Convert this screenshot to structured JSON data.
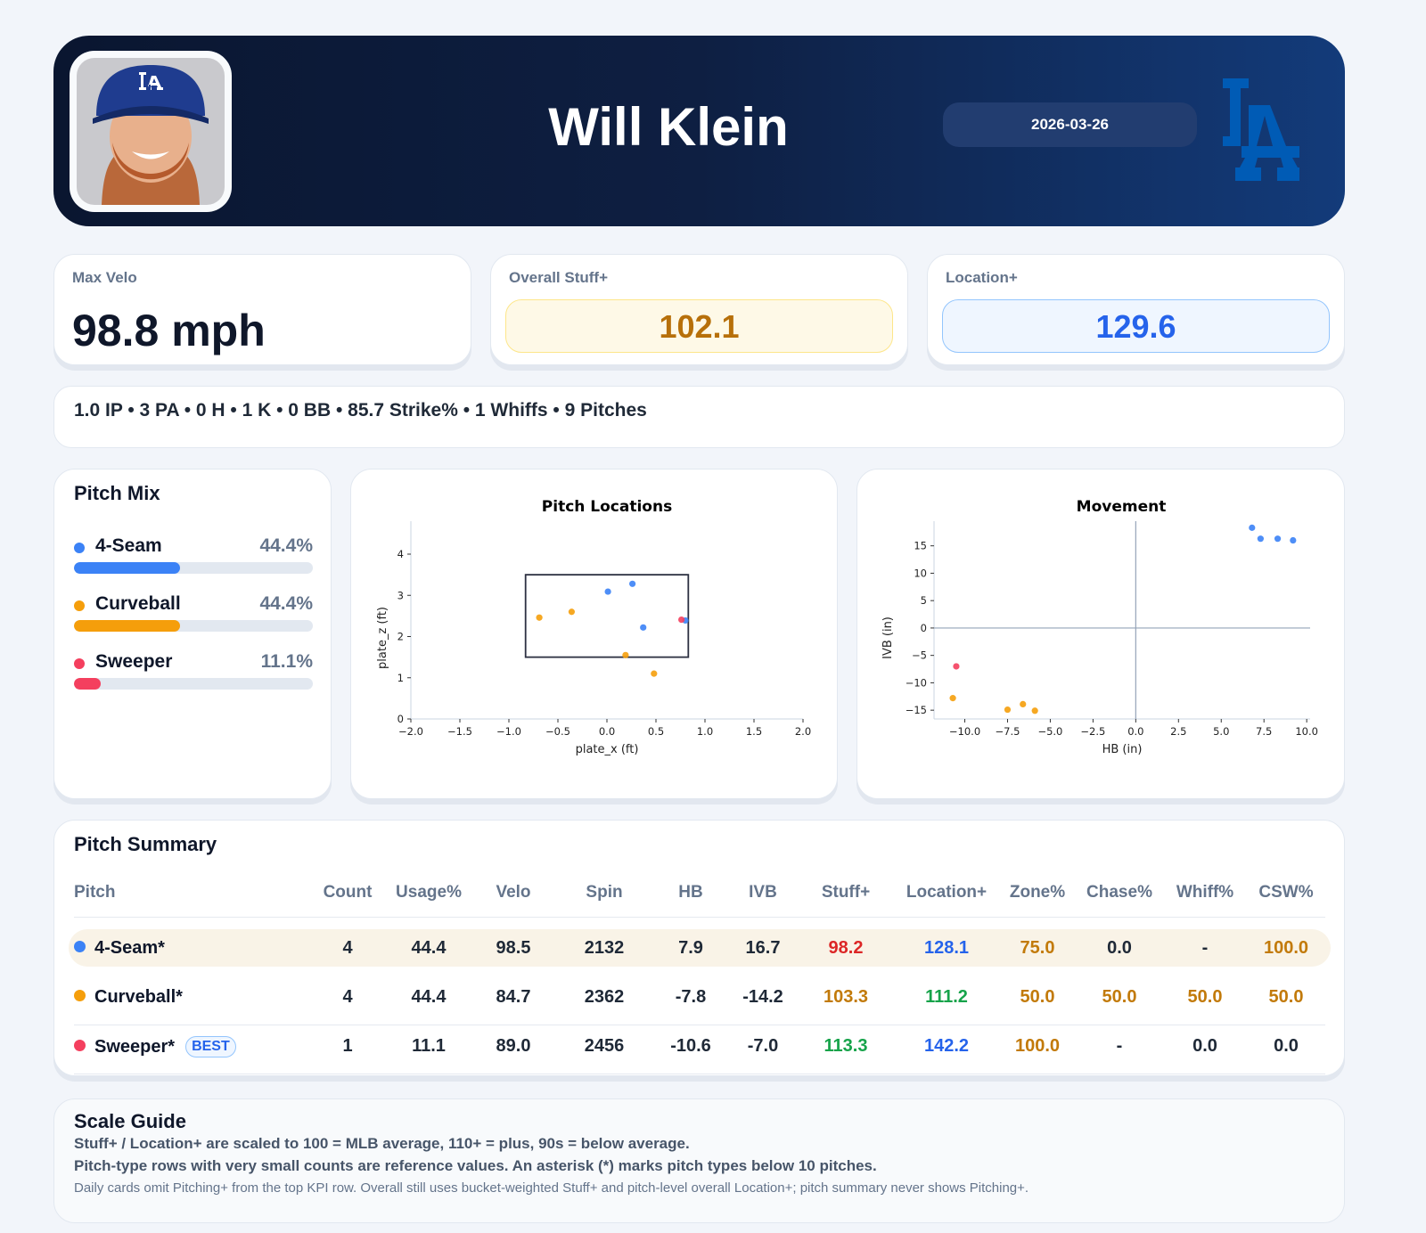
{
  "header": {
    "player_name": "Will Klein",
    "date": "2026-03-26",
    "team_logo": "LA"
  },
  "kpis": {
    "max_velo": {
      "label": "Max Velo",
      "value": "98.8 mph"
    },
    "stuff_plus": {
      "label": "Overall Stuff+",
      "value": "102.1"
    },
    "location_plus": {
      "label": "Location+",
      "value": "129.6"
    }
  },
  "stat_line": "1.0 IP • 3 PA • 0 H • 1 K • 0 BB • 85.7 Strike% • 1 Whiffs • 9 Pitches",
  "pitch_mix": {
    "title": "Pitch Mix",
    "items": [
      {
        "name": "4-Seam",
        "pct_label": "44.4%",
        "pct": 44.4,
        "color": "#3b82f6"
      },
      {
        "name": "Curveball",
        "pct_label": "44.4%",
        "pct": 44.4,
        "color": "#f59e0b"
      },
      {
        "name": "Sweeper",
        "pct_label": "11.1%",
        "pct": 11.1,
        "color": "#f43f5e"
      }
    ]
  },
  "chart_data": [
    {
      "type": "scatter",
      "title": "Pitch Locations",
      "xlabel": "plate_x (ft)",
      "ylabel": "plate_z (ft)",
      "xlim": [
        -2.0,
        2.0
      ],
      "ylim": [
        0,
        4.8
      ],
      "xticks": [
        "−2.0",
        "−1.5",
        "−1.0",
        "−0.5",
        "0.0",
        "0.5",
        "1.0",
        "1.5",
        "2.0"
      ],
      "xtick_values": [
        -2,
        -1.5,
        -1,
        -0.5,
        0,
        0.5,
        1,
        1.5,
        2
      ],
      "yticks": [
        "0",
        "1",
        "2",
        "3",
        "4"
      ],
      "ytick_values": [
        0,
        1,
        2,
        3,
        4
      ],
      "strike_zone": {
        "x": [
          -0.83,
          0.83
        ],
        "z": [
          1.5,
          3.5
        ]
      },
      "series": [
        {
          "color": "#3b82f6",
          "points": [
            [
              0.01,
              3.09
            ],
            [
              0.26,
              3.28
            ],
            [
              0.37,
              2.22
            ],
            [
              0.8,
              2.39
            ]
          ]
        },
        {
          "color": "#f59e0b",
          "points": [
            [
              -0.69,
              2.46
            ],
            [
              -0.36,
              2.6
            ],
            [
              0.19,
              1.55
            ],
            [
              0.48,
              1.1
            ]
          ]
        },
        {
          "color": "#f43f5e",
          "points": [
            [
              0.76,
              2.41
            ]
          ]
        }
      ]
    },
    {
      "type": "scatter",
      "title": "Movement",
      "xlabel": "HB (in)",
      "ylabel": "IVB (in)",
      "xlim": [
        -11.8,
        10.2
      ],
      "ylim": [
        -16.6,
        19.5
      ],
      "xticks": [
        "−10.0",
        "−7.5",
        "−5.0",
        "−2.5",
        "0.0",
        "2.5",
        "5.0",
        "7.5",
        "10.0"
      ],
      "xtick_values": [
        -10,
        -7.5,
        -5,
        -2.5,
        0,
        2.5,
        5,
        7.5,
        10
      ],
      "yticks": [
        "−15",
        "−10",
        "−5",
        "0",
        "5",
        "10",
        "15"
      ],
      "ytick_values": [
        -15,
        -10,
        -5,
        0,
        5,
        10,
        15
      ],
      "zero_lines": true,
      "series": [
        {
          "color": "#3b82f6",
          "points": [
            [
              6.8,
              18.3
            ],
            [
              7.3,
              16.3
            ],
            [
              8.3,
              16.3
            ],
            [
              9.2,
              16.0
            ]
          ]
        },
        {
          "color": "#f59e0b",
          "points": [
            [
              -10.7,
              -12.8
            ],
            [
              -7.5,
              -14.9
            ],
            [
              -6.6,
              -13.9
            ],
            [
              -5.9,
              -15.1
            ]
          ]
        },
        {
          "color": "#f43f5e",
          "points": [
            [
              -10.5,
              -7.0
            ]
          ]
        }
      ]
    }
  ],
  "summary": {
    "title": "Pitch Summary",
    "columns": [
      "Pitch",
      "Count",
      "Usage%",
      "Velo",
      "Spin",
      "HB",
      "IVB",
      "Stuff+",
      "Location+",
      "Zone%",
      "Chase%",
      "Whiff%",
      "CSW%"
    ],
    "best_badge": "BEST",
    "rows": [
      {
        "pitch": "4-Seam*",
        "color": "#3b82f6",
        "highlight": true,
        "best": false,
        "cells": [
          "4",
          "44.4",
          "98.5",
          "2132",
          "7.9",
          "16.7",
          "98.2",
          "128.1",
          "75.0",
          "0.0",
          "-",
          "100.0"
        ],
        "cell_colors": [
          "",
          "",
          "",
          "",
          "",
          "",
          "#dc2626",
          "#2563eb",
          "#c27a0a",
          "",
          "",
          "#c27a0a"
        ]
      },
      {
        "pitch": "Curveball*",
        "color": "#f59e0b",
        "highlight": false,
        "best": false,
        "cells": [
          "4",
          "44.4",
          "84.7",
          "2362",
          "-7.8",
          "-14.2",
          "103.3",
          "111.2",
          "50.0",
          "50.0",
          "50.0",
          "50.0"
        ],
        "cell_colors": [
          "",
          "",
          "",
          "",
          "",
          "",
          "#c27a0a",
          "#16a34a",
          "#c27a0a",
          "#c27a0a",
          "#c27a0a",
          "#c27a0a"
        ]
      },
      {
        "pitch": "Sweeper*",
        "color": "#f43f5e",
        "highlight": false,
        "best": true,
        "cells": [
          "1",
          "11.1",
          "89.0",
          "2456",
          "-10.6",
          "-7.0",
          "113.3",
          "142.2",
          "100.0",
          "-",
          "0.0",
          "0.0"
        ],
        "cell_colors": [
          "",
          "",
          "",
          "",
          "",
          "",
          "#16a34a",
          "#2563eb",
          "#c27a0a",
          "",
          "",
          ""
        ]
      }
    ]
  },
  "scale_guide": {
    "title": "Scale Guide",
    "lines": [
      "Stuff+ / Location+ are scaled to 100 = MLB average, 110+ = plus, 90s = below average.",
      "Pitch-type rows with very small counts are reference values. An asterisk (*) marks pitch types below 10 pitches.",
      "Daily cards omit Pitching+ from the top KPI row. Overall still uses bucket-weighted Stuff+ and pitch-level overall Location+; pitch summary never shows Pitching+."
    ]
  }
}
